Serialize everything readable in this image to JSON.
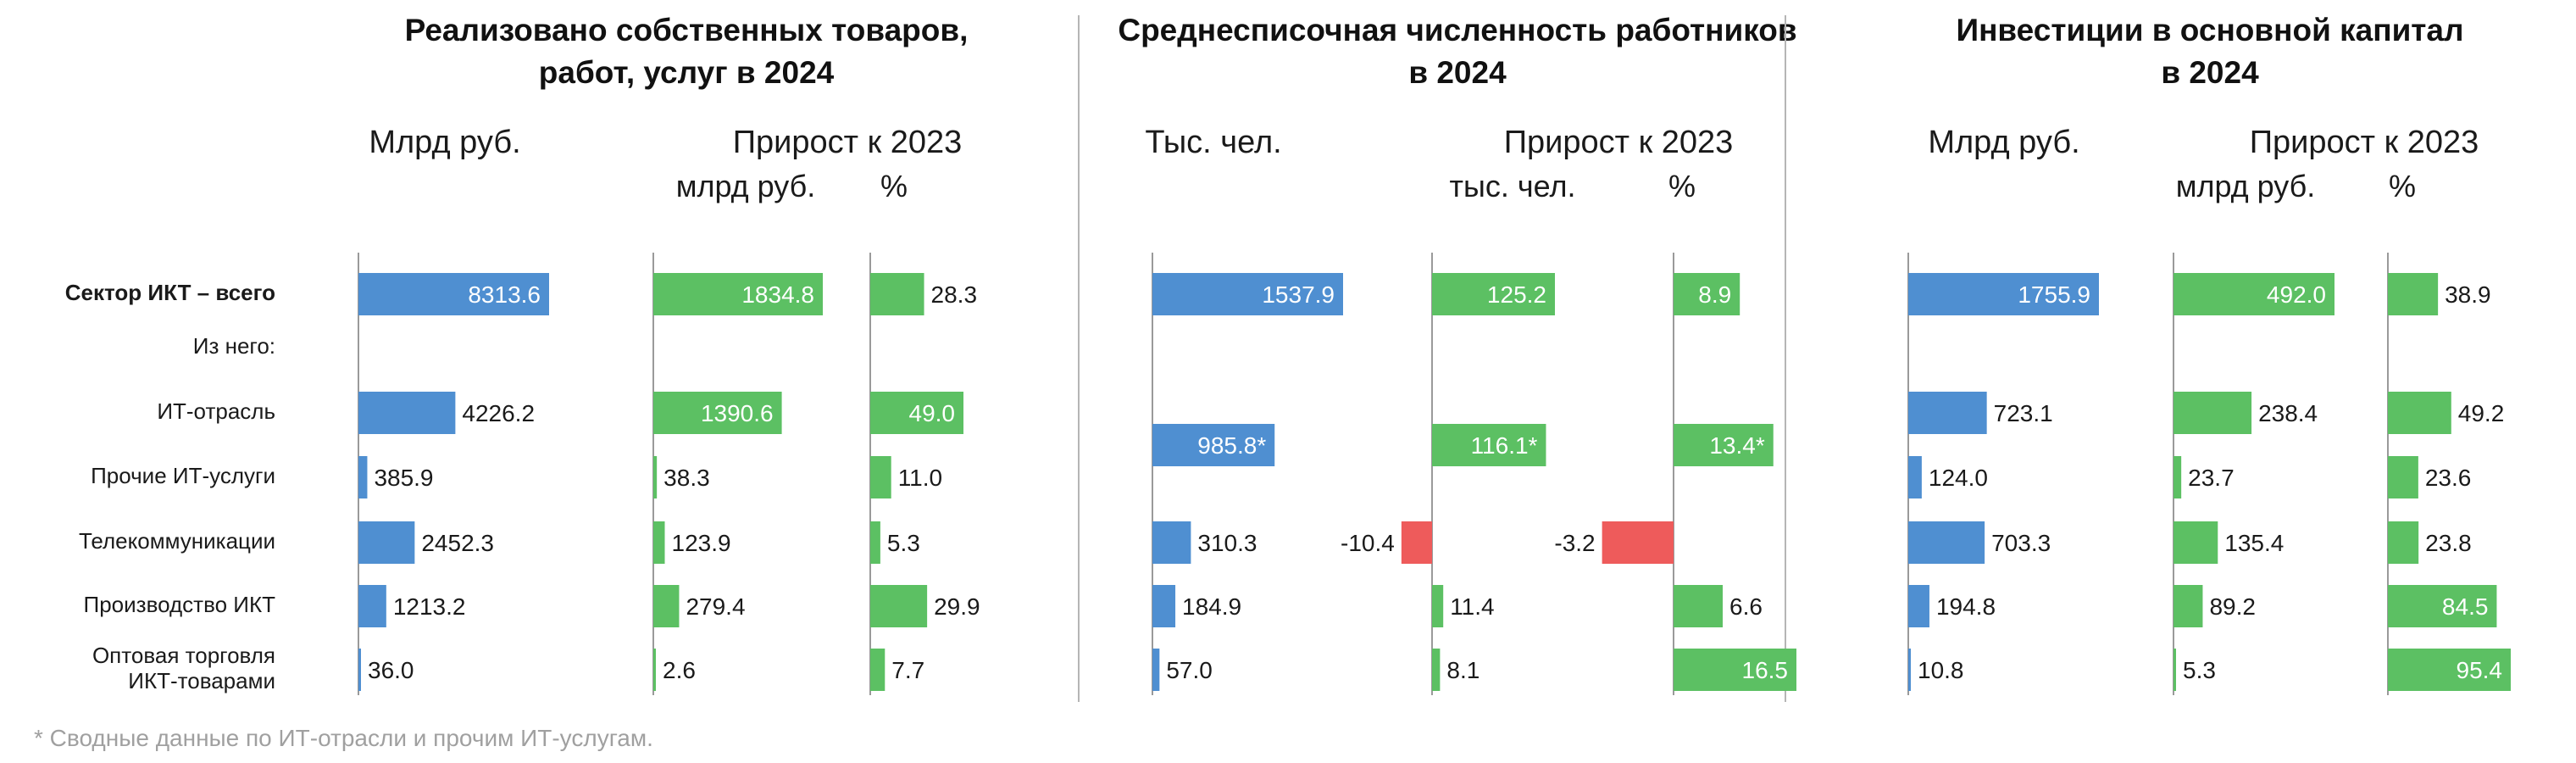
{
  "chart_data": {
    "type": "bar",
    "orientation": "horizontal",
    "footnote": "* Сводные данные по ИТ-отрасли и прочим ИТ-услугам.",
    "row_labels": [
      "Сектор ИКТ – всего",
      "Из него:",
      "ИТ-отрасль",
      "Прочие ИТ-услуги",
      "Телекоммуникации",
      "Производство ИКТ",
      "Оптовая торговля ИКТ-товарами"
    ],
    "row_label_lines": [
      [
        "Сектор ИКТ – всего"
      ],
      [
        "Из него:"
      ],
      [
        "ИТ-отрасль"
      ],
      [
        "Прочие ИТ-услуги"
      ],
      [
        "Телекоммуникации"
      ],
      [
        "Производство ИКТ"
      ],
      [
        "Оптовая торговля",
        "ИКТ-товарами"
      ]
    ],
    "colors": {
      "level": "#4f8fd1",
      "growth": "#5cc063",
      "negative": "#ee5b5b"
    },
    "panels": [
      {
        "title_lines": [
          "Реализовано собственных товаров,",
          "работ, услуг в 2024"
        ],
        "growth_header": "Прирост к 2023",
        "columns": [
          {
            "header": "Млрд руб.",
            "kind": "level",
            "values": [
              8313.6,
              null,
              4226.2,
              385.9,
              2452.3,
              1213.2,
              36.0
            ],
            "labels": [
              "8313.6",
              null,
              "4226.2",
              "385.9",
              "2452.3",
              "1213.2",
              "36.0"
            ]
          },
          {
            "header": "млрд руб.",
            "kind": "growth",
            "values": [
              1834.8,
              null,
              1390.6,
              38.3,
              123.9,
              279.4,
              2.6
            ],
            "labels": [
              "1834.8",
              null,
              "1390.6",
              "38.3",
              "123.9",
              "279.4",
              "2.6"
            ]
          },
          {
            "header": "%",
            "kind": "growth",
            "values": [
              28.3,
              null,
              49.0,
              11.0,
              5.3,
              29.9,
              7.7
            ],
            "labels": [
              "28.3",
              null,
              "49.0",
              "11.0",
              "5.3",
              "29.9",
              "7.7"
            ]
          }
        ]
      },
      {
        "title_lines": [
          "Среднесписочная численность работников",
          "в 2024"
        ],
        "growth_header": "Прирост к 2023",
        "columns": [
          {
            "header": "Тыс. чел.",
            "kind": "level",
            "values": [
              1537.9,
              null,
              985.8,
              null,
              310.3,
              184.9,
              57.0
            ],
            "labels": [
              "1537.9",
              null,
              "985.8*",
              null,
              "310.3",
              "184.9",
              "57.0"
            ],
            "merged_rows": [
              2,
              3
            ]
          },
          {
            "header": "тыс. чел.",
            "kind": "growth",
            "values": [
              125.2,
              null,
              116.1,
              null,
              -10.4,
              11.4,
              8.1
            ],
            "labels": [
              "125.2",
              null,
              "116.1*",
              null,
              "-10.4",
              "11.4",
              "8.1"
            ],
            "merged_rows": [
              2,
              3
            ]
          },
          {
            "header": "%",
            "kind": "growth",
            "values": [
              8.9,
              null,
              13.4,
              null,
              -3.2,
              6.6,
              16.5
            ],
            "labels": [
              "8.9",
              null,
              "13.4*",
              null,
              "-3.2",
              "6.6",
              "16.5"
            ],
            "merged_rows": [
              2,
              3
            ]
          }
        ]
      },
      {
        "title_lines": [
          "Инвестиции в основной капитал",
          "в 2024"
        ],
        "growth_header": "Прирост к 2023",
        "columns": [
          {
            "header": "Млрд руб.",
            "kind": "level",
            "values": [
              1755.9,
              null,
              723.1,
              124.0,
              703.3,
              194.8,
              10.8
            ],
            "labels": [
              "1755.9",
              null,
              "723.1",
              "124.0",
              "703.3",
              "194.8",
              "10.8"
            ]
          },
          {
            "header": "млрд руб.",
            "kind": "growth",
            "values": [
              492.0,
              null,
              238.4,
              23.7,
              135.4,
              89.2,
              5.3
            ],
            "labels": [
              "492.0",
              null,
              "238.4",
              "23.7",
              "135.4",
              "89.2",
              "5.3"
            ]
          },
          {
            "header": "%",
            "kind": "growth",
            "values": [
              38.9,
              null,
              49.2,
              23.6,
              23.8,
              84.5,
              95.4
            ],
            "labels": [
              "38.9",
              null,
              "49.2",
              "23.6",
              "23.8",
              "84.5",
              "95.4"
            ]
          }
        ]
      }
    ]
  }
}
